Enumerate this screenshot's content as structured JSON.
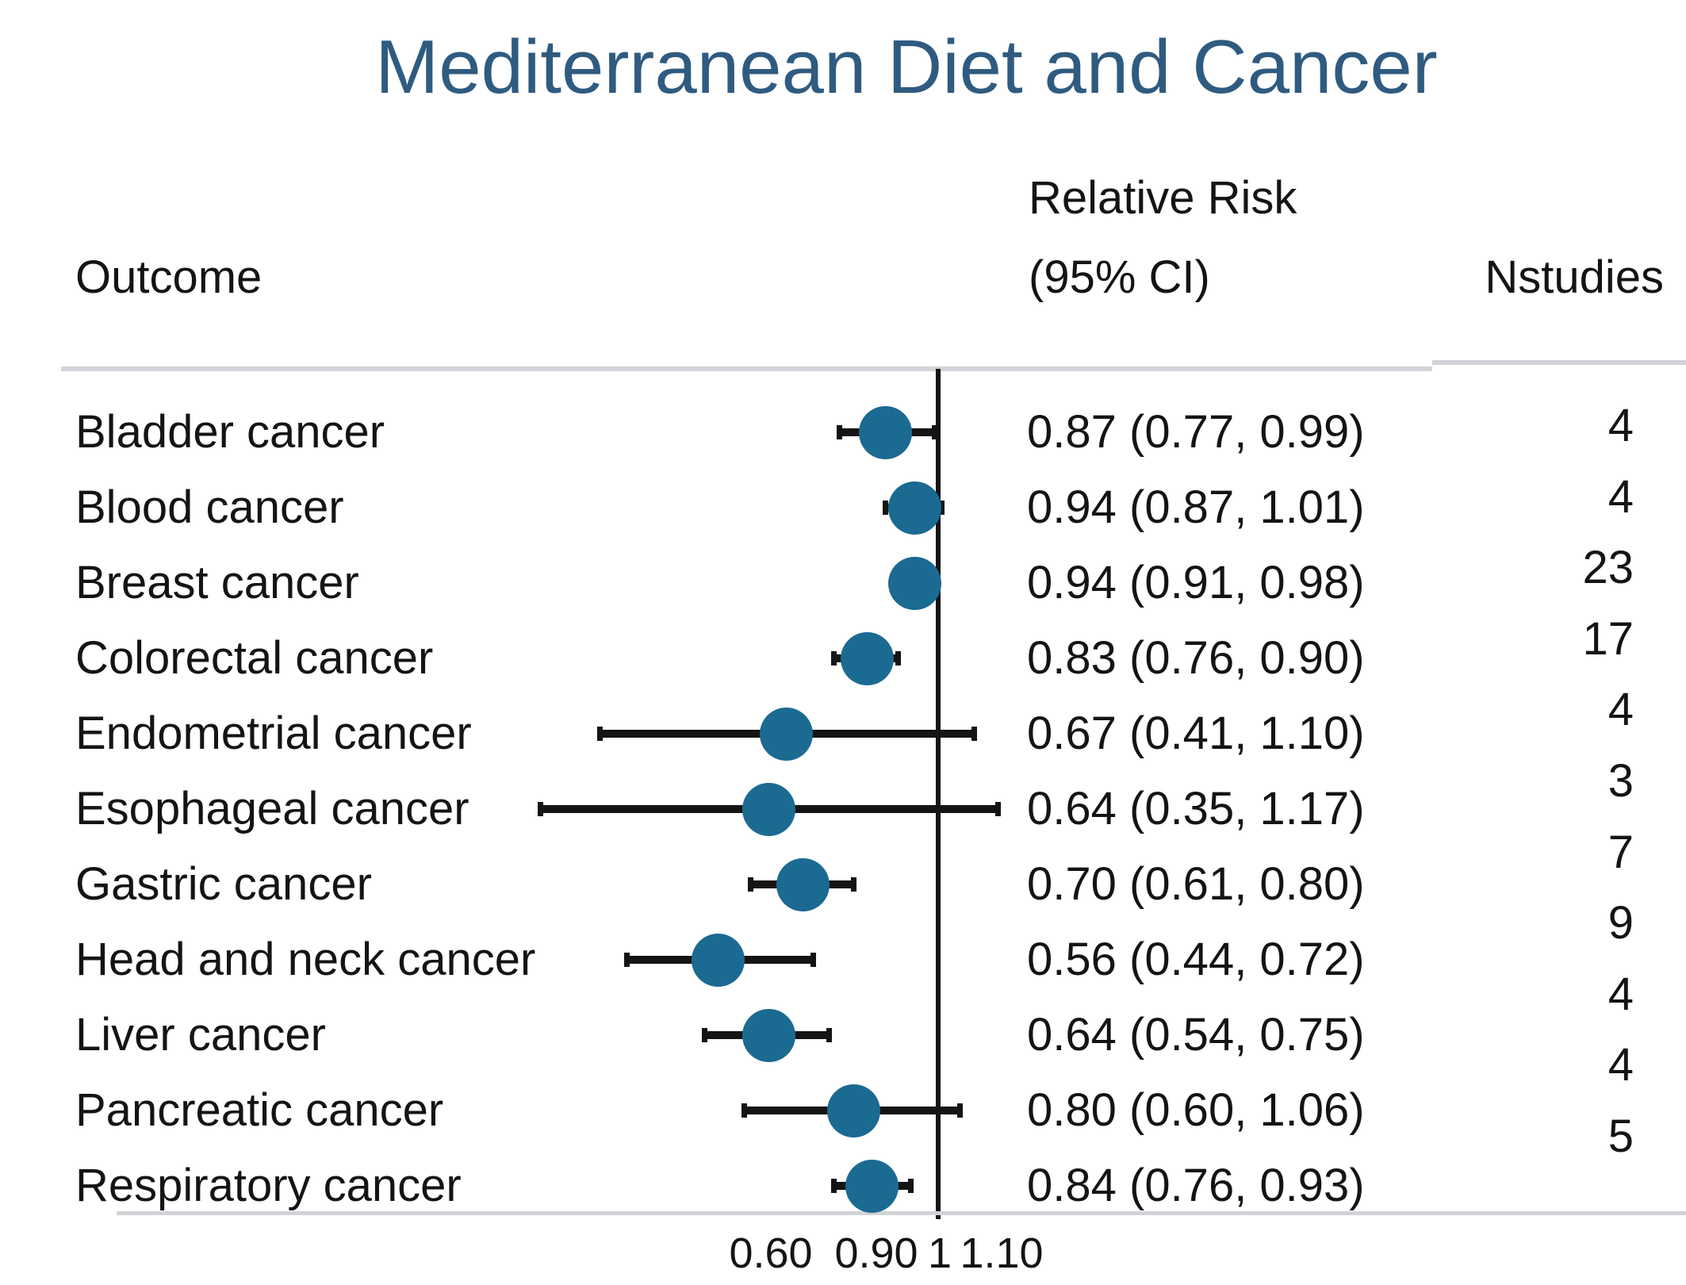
{
  "colors": {
    "title_text": "#2f5b80",
    "body_text": "#141414",
    "marker_fill": "#1b6a92",
    "ci_line": "#141414",
    "reference_line": "#141414",
    "separator_line": "#d2d3d9"
  },
  "chart_data": {
    "type": "forest",
    "title": "Mediterranean Diet and Cancer",
    "x_scale": "log",
    "x_ref_line": 1,
    "x_range": [
      0.33,
      1.22
    ],
    "grid": false,
    "columns": {
      "outcome": "Outcome",
      "rr_line1": "Relative Risk",
      "rr_line2": "(95% CI)",
      "nstudies": "Nstudies"
    },
    "x_ticks": [
      {
        "label": "0.60",
        "value": 0.6
      },
      {
        "label": "0.90",
        "value": 0.9
      },
      {
        "label": "1",
        "value": 1.0
      },
      {
        "label": "1.10",
        "value": 1.1
      }
    ],
    "rows": [
      {
        "outcome": "Bladder cancer",
        "rr": 0.87,
        "ci_low": 0.77,
        "ci_high": 0.99,
        "rr_text": "0.87 (0.77, 0.99)",
        "n_studies": "4"
      },
      {
        "outcome": "Blood cancer",
        "rr": 0.94,
        "ci_low": 0.87,
        "ci_high": 1.01,
        "rr_text": "0.94 (0.87, 1.01)",
        "n_studies": "4"
      },
      {
        "outcome": "Breast cancer",
        "rr": 0.94,
        "ci_low": 0.91,
        "ci_high": 0.98,
        "rr_text": "0.94 (0.91, 0.98)",
        "n_studies": "23"
      },
      {
        "outcome": "Colorectal cancer",
        "rr": 0.83,
        "ci_low": 0.76,
        "ci_high": 0.9,
        "rr_text": "0.83 (0.76, 0.90)",
        "n_studies": "17"
      },
      {
        "outcome": "Endometrial cancer",
        "rr": 0.67,
        "ci_low": 0.41,
        "ci_high": 1.1,
        "rr_text": "0.67 (0.41, 1.10)",
        "n_studies": "4"
      },
      {
        "outcome": "Esophageal cancer",
        "rr": 0.64,
        "ci_low": 0.35,
        "ci_high": 1.17,
        "rr_text": "0.64 (0.35, 1.17)",
        "n_studies": "3"
      },
      {
        "outcome": "Gastric cancer",
        "rr": 0.7,
        "ci_low": 0.61,
        "ci_high": 0.8,
        "rr_text": "0.70 (0.61, 0.80)",
        "n_studies": "7"
      },
      {
        "outcome": "Head and neck cancer",
        "rr": 0.56,
        "ci_low": 0.44,
        "ci_high": 0.72,
        "rr_text": "0.56 (0.44, 0.72)",
        "n_studies": "9"
      },
      {
        "outcome": "Liver cancer",
        "rr": 0.64,
        "ci_low": 0.54,
        "ci_high": 0.75,
        "rr_text": "0.64 (0.54, 0.75)",
        "n_studies": "4"
      },
      {
        "outcome": "Pancreatic cancer",
        "rr": 0.8,
        "ci_low": 0.6,
        "ci_high": 1.06,
        "rr_text": "0.80 (0.60, 1.06)",
        "n_studies": "4"
      },
      {
        "outcome": "Respiratory cancer",
        "rr": 0.84,
        "ci_low": 0.76,
        "ci_high": 0.93,
        "rr_text": "0.84 (0.76, 0.93)",
        "n_studies": "5"
      }
    ]
  }
}
